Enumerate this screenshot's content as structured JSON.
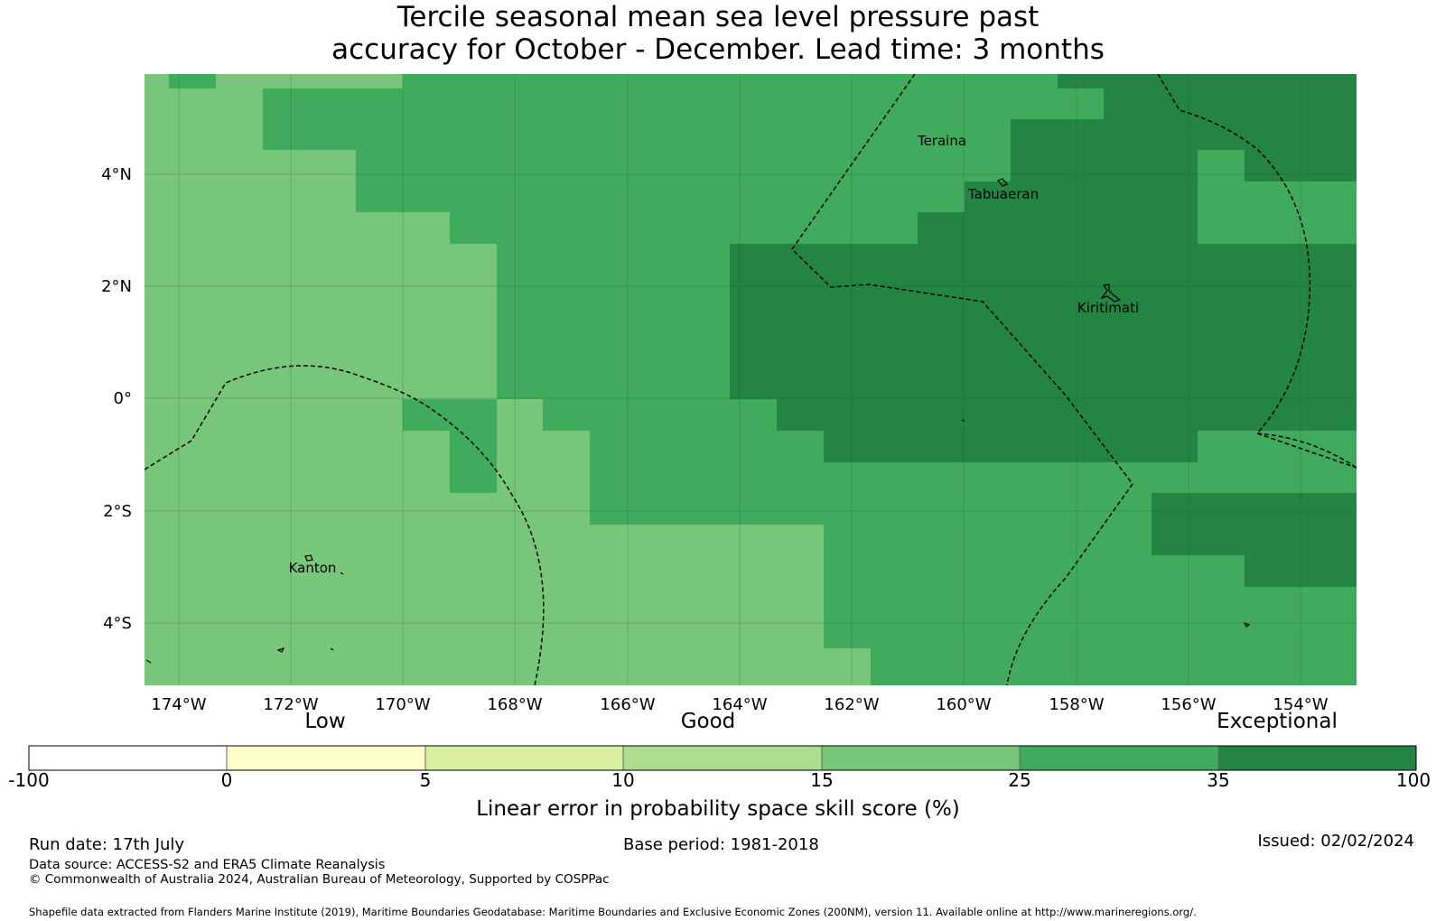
{
  "title_line1": "Tercile seasonal mean sea level pressure past",
  "title_line2": "accuracy for October - December. Lead time: 3 months",
  "lat_labels": [
    "4°N",
    "2°N",
    "0°",
    "2°S",
    "4°S"
  ],
  "lon_labels": [
    "174°W",
    "172°W",
    "170°W",
    "168°W",
    "166°W",
    "164°W",
    "162°W",
    "160°W",
    "158°W",
    "156°W",
    "154°W"
  ],
  "places": [
    "Teraina",
    "Tabuaeran",
    "Kiritimati",
    "Kanton"
  ],
  "colorbar": {
    "words": [
      "Low",
      "Good",
      "Exceptional"
    ],
    "ticks": [
      "-100",
      "0",
      "5",
      "10",
      "15",
      "25",
      "35",
      "100"
    ],
    "colors": [
      "#ffffff",
      "#ffffcc",
      "#d9f0a3",
      "#addd8e",
      "#78c679",
      "#41ab5d",
      "#238443"
    ],
    "label": "Linear error in probability space skill score (%)"
  },
  "footer": {
    "run_date": "Run date: 17th July",
    "base_period": "Base period: 1981-2018",
    "issued": "Issued: 02/02/2024",
    "data_source": "Data source: ACCESS-S2 and ERA5 Climate Reanalysis",
    "copyright": "© Commonwealth of Australia 2024, Australian Bureau of Meteorology, Supported by COSPPac",
    "shapefile": "Shapefile data extracted from Flanders Marine Institute (2019), Maritime Boundaries Geodatabase: Maritime Boundaries and Exclusive Economic Zones (200NM), version 11. Available online at http://www.marineregions.org/."
  }
}
